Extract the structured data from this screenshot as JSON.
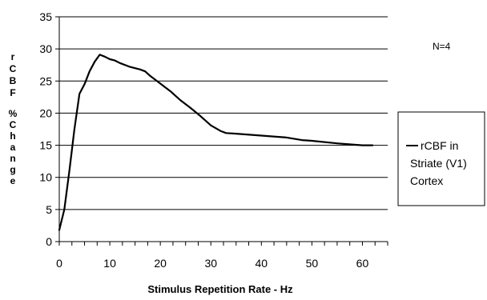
{
  "chart_data": {
    "type": "line",
    "title": "",
    "xlabel": "Stimulus Repetition Rate - Hz",
    "ylabel_line1": "rCBF",
    "ylabel_line2": "%Change",
    "xlim": [
      0,
      65
    ],
    "ylim": [
      0,
      35
    ],
    "x_ticks": [
      "0",
      "10",
      "20",
      "30",
      "40",
      "50",
      "60"
    ],
    "y_ticks": [
      "0",
      "5",
      "10",
      "15",
      "20",
      "25",
      "30",
      "35"
    ],
    "grid": "horizontal",
    "legend_position": "right",
    "annotation": "N=4",
    "series": [
      {
        "name": "rCBF in Striate (V1) Cortex",
        "legend_lines": [
          "rCBF in",
          "Striate (V1)",
          "Cortex"
        ],
        "color": "#000000",
        "x": [
          0,
          1,
          2,
          3,
          4,
          5,
          6,
          7,
          8,
          9,
          10,
          11,
          12,
          14,
          16,
          17,
          18,
          20,
          22,
          24,
          26,
          28,
          30,
          32,
          33,
          35,
          40,
          45,
          48,
          50,
          55,
          60,
          62
        ],
        "y": [
          1.8,
          5,
          11,
          17.5,
          23,
          24.5,
          26.5,
          28,
          29.1,
          28.8,
          28.4,
          28.2,
          27.8,
          27.2,
          26.8,
          26.5,
          25.8,
          24.6,
          23.4,
          22,
          20.8,
          19.5,
          18.1,
          17.2,
          16.9,
          16.8,
          16.5,
          16.2,
          15.8,
          15.7,
          15.3,
          15.0,
          15.0
        ]
      }
    ]
  }
}
